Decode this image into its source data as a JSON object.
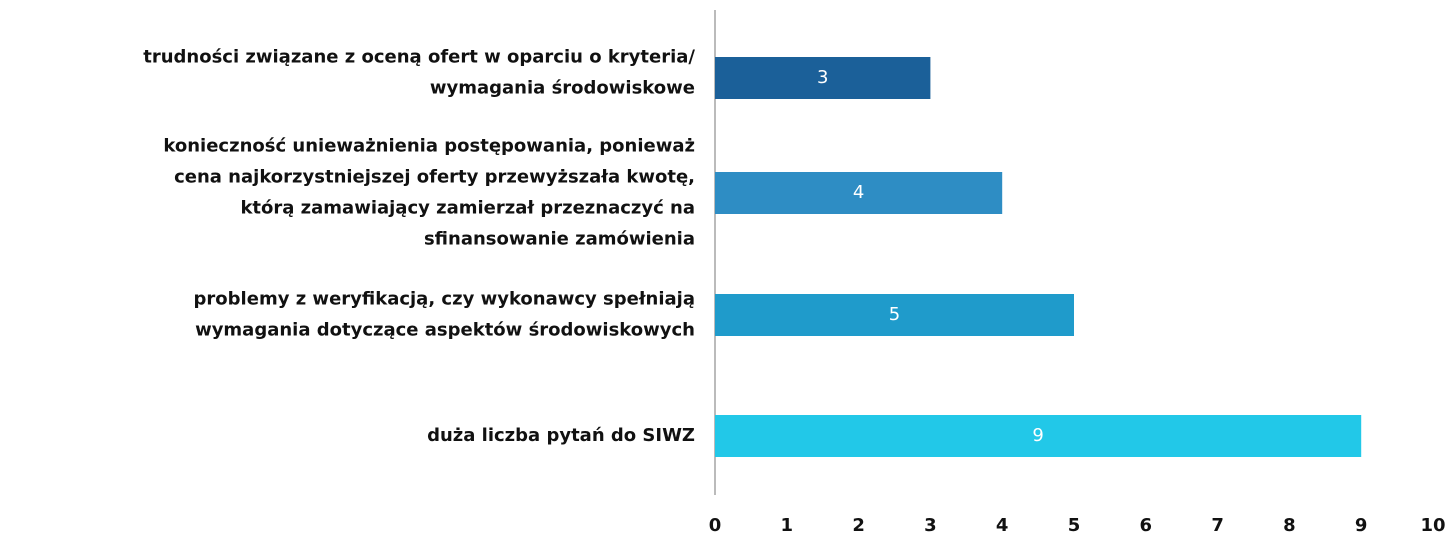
{
  "chart_data": {
    "type": "barh",
    "categories": [
      [
        "trudności związane z oceną ofert w oparciu o kryteria/",
        "wymagania środowiskowe"
      ],
      [
        "konieczność unieważnienia postępowania, ponieważ",
        "cena najkorzystniejszej oferty przewyższała kwotę,",
        "którą zamawiający zamierzał przeznaczyć na",
        "sfinansowanie zamówienia"
      ],
      [
        "problemy z weryfikacją, czy wykonawcy spełniają",
        "wymagania dotyczące aspektów środowiskowych"
      ],
      [
        "duża liczba pytań do SIWZ"
      ]
    ],
    "values": [
      3,
      4,
      5,
      9
    ],
    "colors": [
      "#1b6099",
      "#2e8dc4",
      "#1f9bcb",
      "#22c8e8"
    ],
    "xlim": [
      0,
      10
    ],
    "xticks": [
      0,
      1,
      2,
      3,
      4,
      5,
      6,
      7,
      8,
      9,
      10
    ],
    "grid": false
  }
}
